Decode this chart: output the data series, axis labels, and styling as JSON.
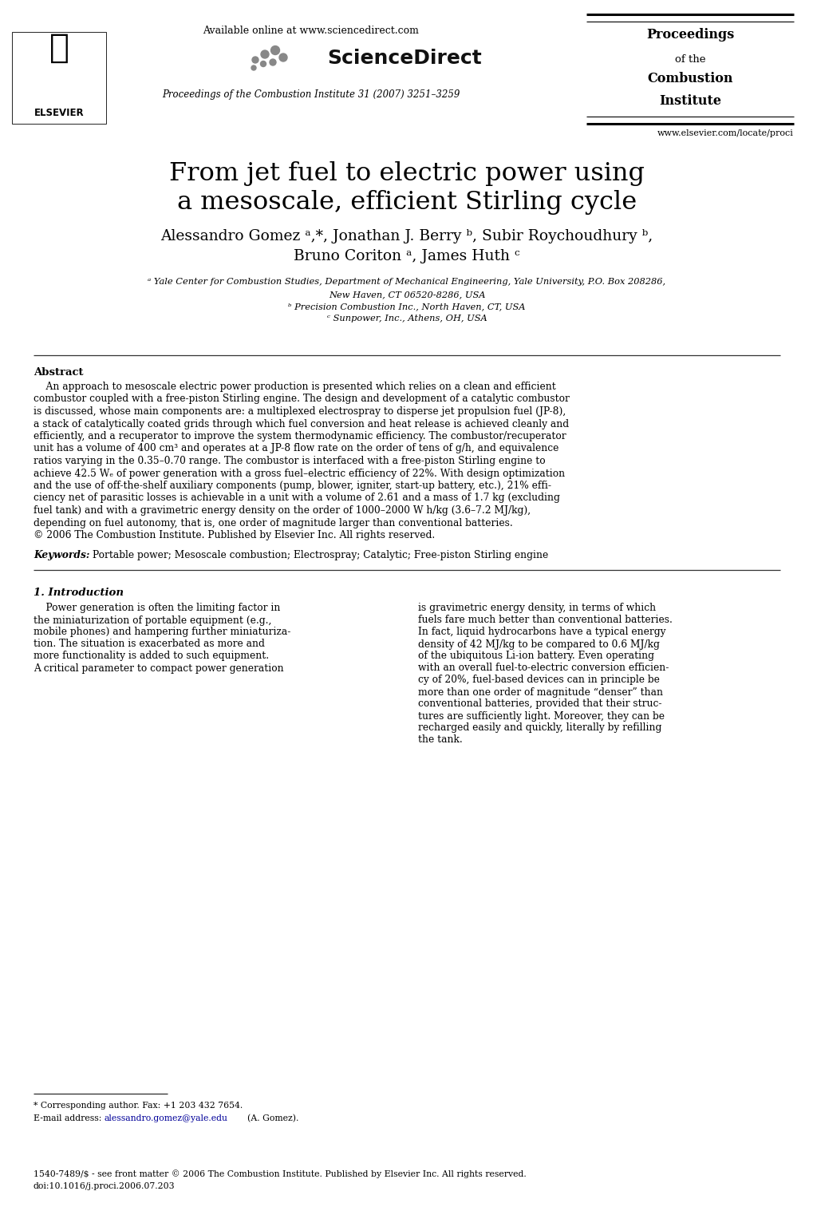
{
  "page_width": 10.2,
  "page_height": 15.12,
  "bg_color": "#ffffff",
  "header": {
    "available_online": "Available online at www.sciencedirect.com",
    "journal_info": "Proceedings of the Combustion Institute 31 (2007) 3251–3259",
    "proceedings_box": {
      "line1": "Proceedings",
      "line2": "of the",
      "line3": "Combustion",
      "line4": "Institute"
    },
    "website": "www.elsevier.com/locate/proci"
  },
  "title": {
    "line1": "From jet fuel to electric power using",
    "line2": "a mesoscale, efficient Stirling cycle"
  },
  "abstract_title": "Abstract",
  "keywords_label": "Keywords:",
  "keywords_text": "Portable power; Mesoscale combustion; Electrospray; Catalytic; Free-piston Stirling engine",
  "section1_title": "1. Introduction",
  "footnote1": "* Corresponding author. Fax: +1 203 432 7654.",
  "footnote_email_prefix": "E-mail address:  ",
  "footnote_email": "alessandro.gomez@yale.edu",
  "footnote_email_suffix": " (A.",
  "footnote_name": "Gomez).",
  "footer_line1": "1540-7489/$ - see front matter © 2006 The Combustion Institute. Published by Elsevier Inc. All rights reserved.",
  "footer_line2": "doi:10.1016/j.proci.2006.07.203"
}
